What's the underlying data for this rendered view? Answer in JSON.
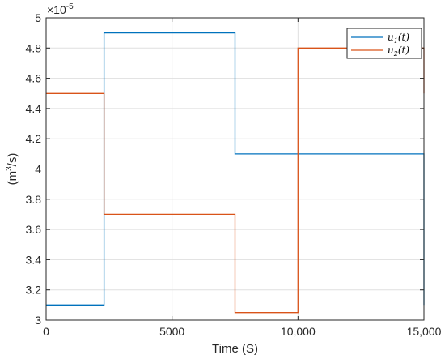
{
  "chart_data": {
    "type": "line",
    "step": true,
    "xlabel": "Time (S)",
    "ylabel": "(m³/s)",
    "ylabel_parts": {
      "prefix": "(m",
      "exponent": "3",
      "suffix": "/s)"
    },
    "y_exponent_label": {
      "base": "×10",
      "exponent": "-5"
    },
    "xlim": [
      0,
      15000
    ],
    "ylim": [
      3,
      5
    ],
    "x_ticks": [
      0,
      5000,
      10000,
      15000
    ],
    "x_tick_labels": [
      "0",
      "5000",
      "10,000",
      "15,000"
    ],
    "y_ticks": [
      3,
      3.2,
      3.4,
      3.6,
      3.8,
      4,
      4.2,
      4.4,
      4.6,
      4.8,
      5
    ],
    "y_tick_labels": [
      "3",
      "3.2",
      "3.4",
      "3.6",
      "3.8",
      "4",
      "4.2",
      "4.4",
      "4.6",
      "4.8",
      "5"
    ],
    "grid": true,
    "legend_position": "top-right",
    "series": [
      {
        "name": "u1(t)",
        "legend_parts": {
          "base": "u",
          "sub": "1",
          "tail": "(t)"
        },
        "color": "#0072BD",
        "x": [
          0,
          2300,
          2300,
          7500,
          7500,
          15000,
          15000
        ],
        "y": [
          3.1,
          3.1,
          4.9,
          4.9,
          4.1,
          4.1,
          3.1
        ]
      },
      {
        "name": "u2(t)",
        "legend_parts": {
          "base": "u",
          "sub": "2",
          "tail": "(t)"
        },
        "color": "#D95319",
        "x": [
          0,
          2300,
          2300,
          7500,
          7500,
          10000,
          10000,
          15000,
          15000
        ],
        "y": [
          4.5,
          4.5,
          3.7,
          3.7,
          3.05,
          3.05,
          4.8,
          4.8,
          4.5
        ]
      }
    ]
  }
}
